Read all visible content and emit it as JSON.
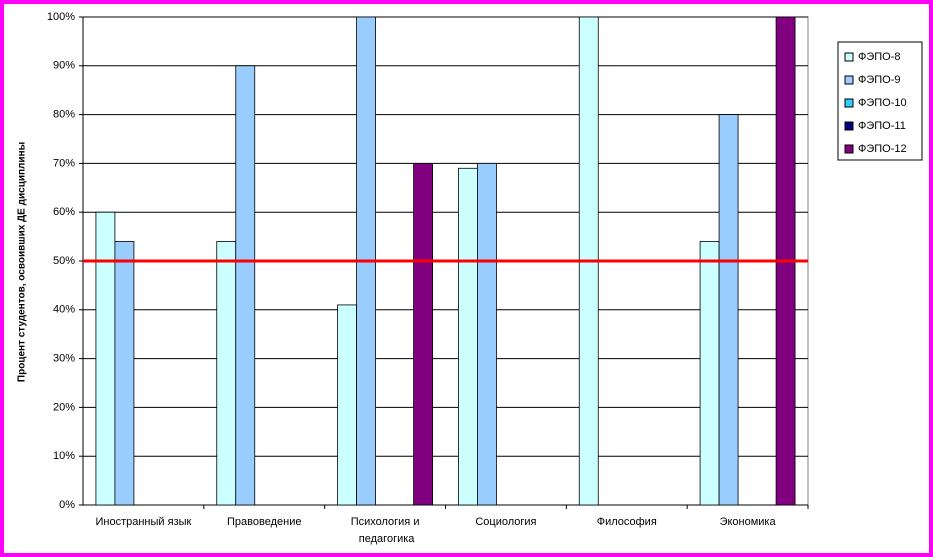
{
  "chart_data": {
    "type": "bar",
    "y_label": "Процент студентов, освоивших ДЕ дисциплины",
    "categories": [
      "Иностранный язык",
      "Правоведение",
      "Психология и педагогика",
      "Социология",
      "Философия",
      "Экономика"
    ],
    "series": [
      {
        "name": "ФЭПО-8",
        "color": "#ccffff",
        "values": [
          60,
          54,
          41,
          69,
          100,
          54
        ]
      },
      {
        "name": "ФЭПО-9",
        "color": "#99ccff",
        "values": [
          54,
          90,
          100,
          70,
          null,
          80
        ]
      },
      {
        "name": "ФЭПО-10",
        "color": "#33ccff",
        "values": [
          null,
          null,
          null,
          null,
          null,
          null
        ]
      },
      {
        "name": "ФЭПО-11",
        "color": "#000080",
        "values": [
          null,
          null,
          null,
          null,
          null,
          null
        ]
      },
      {
        "name": "ФЭПО-12",
        "color": "#800080",
        "values": [
          null,
          null,
          70,
          null,
          null,
          100
        ]
      }
    ],
    "reference_line": {
      "value": 50,
      "color": "#ff0000"
    },
    "ylim": [
      0,
      100
    ],
    "yticks": [
      {
        "value": 0,
        "label": "0%"
      },
      {
        "value": 10,
        "label": "10%"
      },
      {
        "value": 20,
        "label": "20%"
      },
      {
        "value": 30,
        "label": "30%"
      },
      {
        "value": 40,
        "label": "40%"
      },
      {
        "value": 50,
        "label": "50%"
      },
      {
        "value": 60,
        "label": "60%"
      },
      {
        "value": 70,
        "label": "70%"
      },
      {
        "value": 80,
        "label": "80%"
      },
      {
        "value": 90,
        "label": "90%"
      },
      {
        "value": 100,
        "label": "100%"
      }
    ],
    "grid": true,
    "legend": "right"
  }
}
